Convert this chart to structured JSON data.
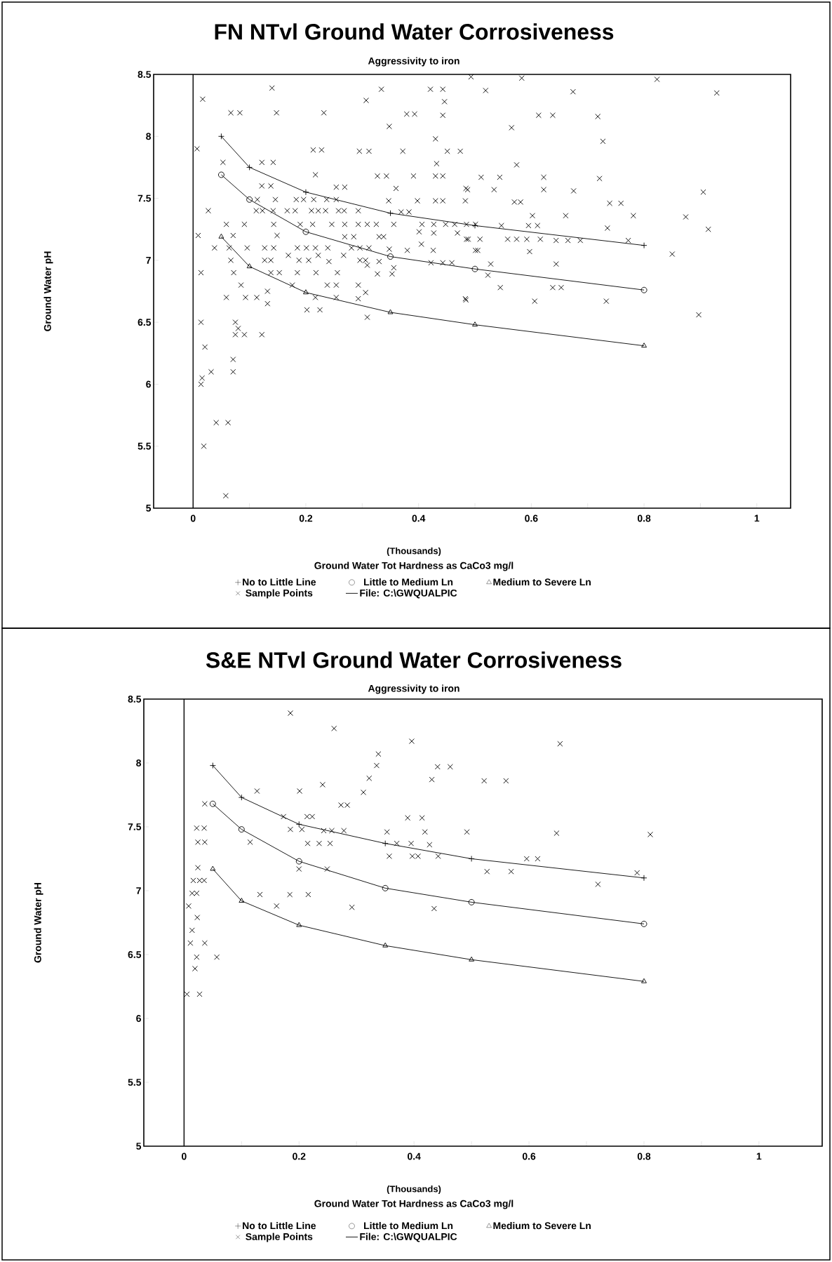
{
  "chart_data": [
    {
      "type": "line",
      "title": "FN NTvl Ground Water Corrosiveness",
      "subtitle": "Aggressivity to iron",
      "xlabel": "Ground Water Tot Hardness as CaCo3 mg/l",
      "ylabel": "Ground Water pH",
      "annotations": [
        "(Thousands)",
        "File: C:\\GWQUALPIC"
      ],
      "xlim": [
        -0.07,
        1.06
      ],
      "ylim": [
        5,
        8.5
      ],
      "xticks": [
        0,
        {
          "value": 0.1,
          "label": null
        },
        0.2,
        {
          "value": 0.3,
          "label": null
        },
        0.4,
        {
          "value": 0.5,
          "label": null
        },
        0.6,
        {
          "value": 0.7,
          "label": null
        },
        0.8,
        {
          "value": 0.9,
          "label": null
        },
        1
      ],
      "yticks": [
        5,
        5.5,
        6,
        6.5,
        7,
        7.5,
        8,
        8.5
      ],
      "legend": "bottom",
      "ref_lines": [
        {
          "axis": "x",
          "value": 0
        }
      ],
      "series": [
        {
          "name": "No to Little Line",
          "color": "#000000",
          "marker": "cross",
          "x": [
            0.05,
            0.1,
            0.2,
            0.35,
            0.5,
            0.8
          ],
          "values": [
            8.0,
            7.75,
            7.55,
            7.38,
            7.28,
            7.12
          ]
        },
        {
          "name": "Little to Medium Ln",
          "color": "#000000",
          "marker": "circle",
          "x": [
            0.05,
            0.1,
            0.2,
            0.35,
            0.5,
            0.8
          ],
          "values": [
            7.69,
            7.49,
            7.23,
            7.03,
            6.93,
            6.76
          ]
        },
        {
          "name": "Medium to Severe Ln",
          "color": "#000000",
          "marker": "triangle",
          "x": [
            0.05,
            0.1,
            0.2,
            0.35,
            0.5,
            0.8
          ],
          "values": [
            7.19,
            6.95,
            6.74,
            6.58,
            6.48,
            6.31
          ]
        },
        {
          "name": "Sample Points",
          "type": "scatter",
          "color": "#000000",
          "marker": "x",
          "x": [
            0.14,
            0.017,
            0.067,
            0.083,
            0.148,
            0.232,
            0.334,
            0.307,
            0.421,
            0.443,
            0.446,
            0.443,
            0.379,
            0.393,
            0.348,
            0.43,
            0.007,
            0.213,
            0.228,
            0.295,
            0.312,
            0.372,
            0.451,
            0.474,
            0.053,
            0.122,
            0.142,
            0.432,
            0.217,
            0.327,
            0.343,
            0.391,
            0.43,
            0.443,
            0.122,
            0.138,
            0.254,
            0.269,
            0.36,
            0.484,
            0.114,
            0.146,
            0.183,
            0.196,
            0.214,
            0.237,
            0.254,
            0.347,
            0.398,
            0.43,
            0.443,
            0.483,
            0.027,
            0.112,
            0.123,
            0.142,
            0.167,
            0.181,
            0.21,
            0.222,
            0.235,
            0.258,
            0.268,
            0.293,
            0.369,
            0.383,
            0.059,
            0.091,
            0.143,
            0.19,
            0.212,
            0.246,
            0.269,
            0.293,
            0.309,
            0.325,
            0.356,
            0.406,
            0.427,
            0.448,
            0.464,
            0.485,
            0.501,
            0.009,
            0.071,
            0.149,
            0.269,
            0.285,
            0.33,
            0.338,
            0.401,
            0.427,
            0.469,
            0.485,
            0.038,
            0.064,
            0.096,
            0.127,
            0.143,
            0.185,
            0.201,
            0.217,
            0.239,
            0.281,
            0.296,
            0.312,
            0.348,
            0.38,
            0.405,
            0.426,
            0.501,
            0.067,
            0.127,
            0.138,
            0.169,
            0.188,
            0.205,
            0.222,
            0.241,
            0.267,
            0.296,
            0.306,
            0.309,
            0.33,
            0.422,
            0.443,
            0.459,
            0.014,
            0.072,
            0.138,
            0.153,
            0.185,
            0.218,
            0.256,
            0.327,
            0.353,
            0.356,
            0.085,
            0.176,
            0.238,
            0.254,
            0.293,
            0.059,
            0.093,
            0.113,
            0.132,
            0.217,
            0.254,
            0.293,
            0.306,
            0.132,
            0.483,
            0.202,
            0.225,
            0.309,
            0.014,
            0.075,
            0.08,
            0.075,
            0.091,
            0.122,
            0.021,
            0.071,
            0.071,
            0.032,
            0.016,
            0.014,
            0.041,
            0.062,
            0.019,
            0.058,
            0.493,
            0.583,
            0.823,
            0.519,
            0.674,
            0.929,
            0.613,
            0.638,
            0.718,
            0.565,
            0.727,
            0.574,
            0.511,
            0.544,
            0.622,
            0.721,
            0.487,
            0.534,
            0.622,
            0.675,
            0.905,
            0.57,
            0.581,
            0.739,
            0.759,
            0.602,
            0.661,
            0.781,
            0.874,
            0.547,
            0.595,
            0.611,
            0.735,
            0.914,
            0.488,
            0.509,
            0.558,
            0.574,
            0.592,
            0.616,
            0.644,
            0.665,
            0.687,
            0.772,
            0.505,
            0.597,
            0.85,
            0.528,
            0.644,
            0.523,
            0.545,
            0.638,
            0.653,
            0.484,
            0.606,
            0.733,
            0.897
          ],
          "values": [
            8.39,
            8.3,
            8.19,
            8.19,
            8.19,
            8.19,
            8.38,
            8.29,
            8.38,
            8.38,
            8.28,
            8.17,
            8.18,
            8.18,
            8.08,
            7.98,
            7.9,
            7.89,
            7.89,
            7.88,
            7.88,
            7.88,
            7.88,
            7.88,
            7.79,
            7.79,
            7.79,
            7.78,
            7.69,
            7.68,
            7.68,
            7.68,
            7.68,
            7.68,
            7.6,
            7.6,
            7.59,
            7.59,
            7.58,
            7.58,
            7.49,
            7.49,
            7.49,
            7.49,
            7.49,
            7.49,
            7.49,
            7.48,
            7.48,
            7.48,
            7.48,
            7.48,
            7.4,
            7.4,
            7.4,
            7.4,
            7.4,
            7.4,
            7.4,
            7.4,
            7.4,
            7.4,
            7.4,
            7.4,
            7.39,
            7.39,
            7.29,
            7.29,
            7.29,
            7.29,
            7.29,
            7.29,
            7.29,
            7.29,
            7.29,
            7.29,
            7.29,
            7.29,
            7.29,
            7.29,
            7.29,
            7.29,
            7.29,
            7.2,
            7.2,
            7.2,
            7.19,
            7.19,
            7.19,
            7.19,
            7.23,
            7.22,
            7.22,
            7.17,
            7.1,
            7.1,
            7.1,
            7.1,
            7.1,
            7.1,
            7.1,
            7.1,
            7.1,
            7.1,
            7.1,
            7.1,
            7.09,
            7.08,
            7.13,
            7.08,
            7.08,
            7.0,
            7.0,
            7.0,
            7.04,
            7.0,
            7.0,
            7.04,
            6.99,
            7.04,
            7.0,
            7.0,
            6.96,
            6.99,
            6.98,
            6.98,
            6.98,
            6.9,
            6.9,
            6.9,
            6.9,
            6.9,
            6.9,
            6.9,
            6.89,
            6.89,
            6.94,
            6.8,
            6.8,
            6.8,
            6.8,
            6.8,
            6.7,
            6.7,
            6.7,
            6.75,
            6.7,
            6.7,
            6.69,
            6.74,
            6.65,
            6.69,
            6.6,
            6.6,
            6.54,
            6.5,
            6.5,
            6.45,
            6.4,
            6.4,
            6.4,
            6.3,
            6.2,
            6.1,
            6.1,
            6.05,
            6.0,
            5.69,
            5.69,
            5.5,
            5.1,
            8.48,
            8.47,
            8.46,
            8.37,
            8.36,
            8.35,
            8.17,
            8.17,
            8.16,
            8.07,
            7.96,
            7.77,
            7.67,
            7.67,
            7.67,
            7.66,
            7.57,
            7.57,
            7.57,
            7.56,
            7.55,
            7.47,
            7.47,
            7.46,
            7.46,
            7.36,
            7.36,
            7.36,
            7.35,
            7.28,
            7.28,
            7.28,
            7.26,
            7.25,
            7.17,
            7.17,
            7.17,
            7.17,
            7.17,
            7.17,
            7.16,
            7.16,
            7.16,
            7.16,
            7.08,
            7.07,
            7.05,
            6.97,
            6.97,
            6.88,
            6.78,
            6.78,
            6.78,
            6.68,
            6.67,
            6.67,
            6.56
          ]
        }
      ]
    },
    {
      "type": "line",
      "title": "S&E NTvl Ground Water Corrosiveness",
      "subtitle": "Aggressivity to iron",
      "xlabel": "Ground Water Tot Hardness as CaCo3 mg/l",
      "ylabel": "Ground Water pH",
      "annotations": [
        "(Thousands)",
        "File: C:\\GWQUALPIC"
      ],
      "xlim": [
        -0.07,
        1.11
      ],
      "ylim": [
        5,
        8.5
      ],
      "xticks": [
        0,
        {
          "value": 0.1,
          "label": null
        },
        0.2,
        {
          "value": 0.3,
          "label": null
        },
        0.4,
        {
          "value": 0.5,
          "label": null
        },
        0.6,
        {
          "value": 0.7,
          "label": null
        },
        0.8,
        {
          "value": 0.9,
          "label": null
        },
        1
      ],
      "yticks": [
        5,
        5.5,
        6,
        6.5,
        7,
        7.5,
        8,
        8.5
      ],
      "legend": "bottom",
      "ref_lines": [
        {
          "axis": "x",
          "value": 0
        }
      ],
      "series": [
        {
          "name": "No to Little Line",
          "color": "#000000",
          "marker": "cross",
          "x": [
            0.05,
            0.1,
            0.2,
            0.35,
            0.5,
            0.8
          ],
          "values": [
            7.98,
            7.73,
            7.52,
            7.37,
            7.25,
            7.1
          ]
        },
        {
          "name": "Little to Medium Ln",
          "color": "#000000",
          "marker": "circle",
          "x": [
            0.05,
            0.1,
            0.2,
            0.35,
            0.5,
            0.8
          ],
          "values": [
            7.68,
            7.48,
            7.23,
            7.02,
            6.91,
            6.74
          ]
        },
        {
          "name": "Medium to Severe Ln",
          "color": "#000000",
          "marker": "triangle",
          "x": [
            0.05,
            0.1,
            0.2,
            0.35,
            0.5,
            0.8
          ],
          "values": [
            7.17,
            6.92,
            6.73,
            6.57,
            6.46,
            6.29
          ]
        },
        {
          "name": "Sample Points",
          "type": "scatter",
          "color": "#000000",
          "marker": "x",
          "x": [
            0.185,
            0.261,
            0.396,
            0.338,
            0.335,
            0.441,
            0.463,
            0.322,
            0.431,
            0.127,
            0.201,
            0.241,
            0.312,
            0.036,
            0.273,
            0.284,
            0.173,
            0.214,
            0.223,
            0.389,
            0.414,
            0.022,
            0.035,
            0.185,
            0.205,
            0.243,
            0.257,
            0.278,
            0.353,
            0.419,
            0.492,
            0.024,
            0.036,
            0.115,
            0.215,
            0.235,
            0.254,
            0.37,
            0.395,
            0.427,
            0.357,
            0.397,
            0.407,
            0.442,
            0.024,
            0.016,
            0.027,
            0.035,
            0.2,
            0.249,
            0.014,
            0.022,
            0.132,
            0.184,
            0.216,
            0.008,
            0.161,
            0.292,
            0.435,
            0.023,
            0.014,
            0.011,
            0.036,
            0.022,
            0.057,
            0.019,
            0.005,
            0.027,
            0.654,
            0.522,
            0.56,
            0.648,
            0.811,
            0.596,
            0.615,
            0.527,
            0.569,
            0.72,
            0.788
          ],
          "values": [
            8.39,
            8.27,
            8.17,
            8.07,
            7.98,
            7.97,
            7.97,
            7.88,
            7.87,
            7.78,
            7.78,
            7.83,
            7.77,
            7.68,
            7.67,
            7.67,
            7.58,
            7.58,
            7.58,
            7.57,
            7.57,
            7.49,
            7.49,
            7.48,
            7.48,
            7.47,
            7.47,
            7.47,
            7.46,
            7.46,
            7.46,
            7.38,
            7.38,
            7.38,
            7.37,
            7.37,
            7.37,
            7.37,
            7.37,
            7.36,
            7.27,
            7.27,
            7.27,
            7.27,
            7.18,
            7.08,
            7.08,
            7.08,
            7.17,
            7.17,
            6.98,
            6.98,
            6.97,
            6.97,
            6.97,
            6.88,
            6.88,
            6.87,
            6.86,
            6.79,
            6.69,
            6.59,
            6.59,
            6.48,
            6.48,
            6.39,
            6.19,
            6.19,
            8.15,
            7.86,
            7.86,
            7.45,
            7.44,
            7.25,
            7.25,
            7.15,
            7.15,
            7.05,
            7.14
          ]
        }
      ]
    }
  ]
}
